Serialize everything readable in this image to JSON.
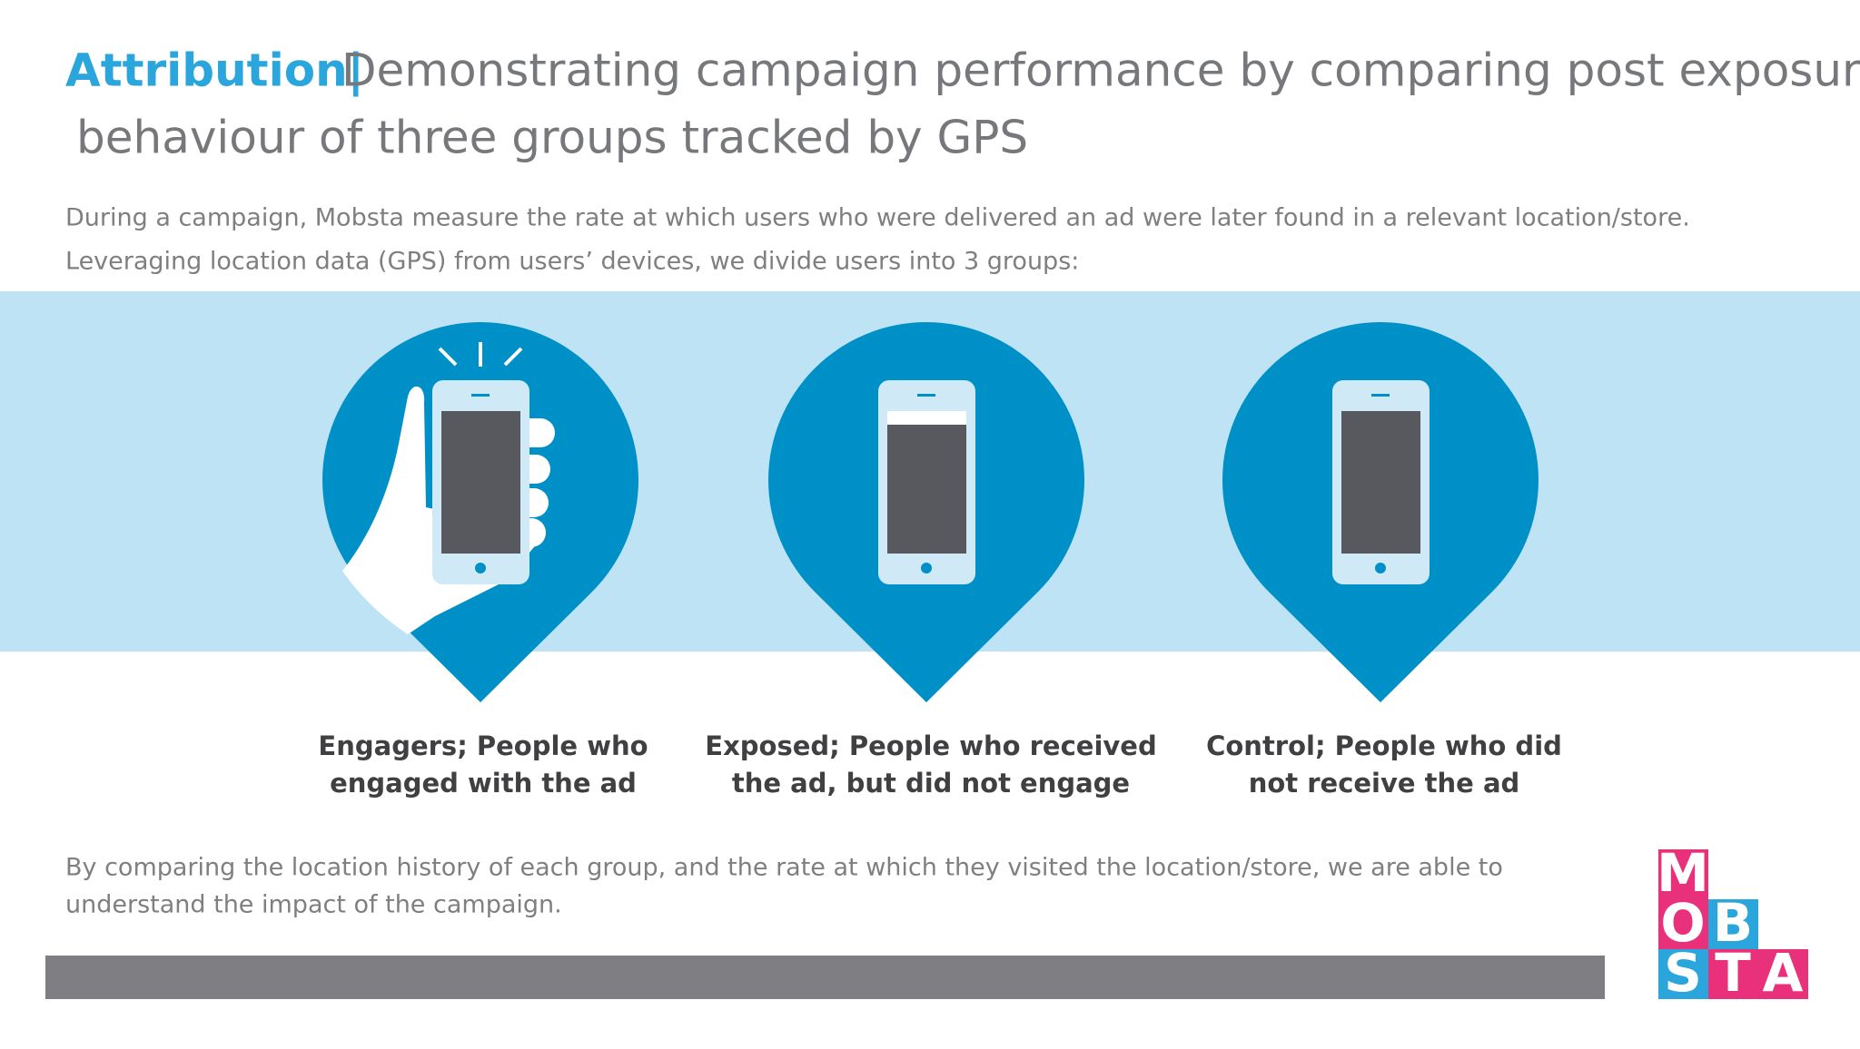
{
  "header": {
    "highlight": "Attribution|",
    "title_lines": [
      "Demonstrating campaign performance by comparing post exposure",
      "behaviour of three groups tracked by GPS"
    ]
  },
  "intro_lines": [
    "During a campaign, Mobsta measure the rate at which users who were delivered an ad were later found in a relevant location/store.",
    "Leveraging location data (GPS) from users’ devices, we divide users into 3 groups:"
  ],
  "groups": [
    {
      "lines": [
        "Engagers; People who",
        "engaged with the ad"
      ]
    },
    {
      "lines": [
        "Exposed; People who received",
        "the ad, but did not engage"
      ]
    },
    {
      "lines": [
        "Control; People who did",
        "not receive the ad"
      ]
    }
  ],
  "outro_lines": [
    "By comparing the location history of each group, and the rate at which they visited the location/store, we are able to",
    "understand the impact of the campaign."
  ],
  "logo": {
    "letters": [
      "M",
      "O",
      "B",
      "S",
      "T",
      "A"
    ]
  }
}
